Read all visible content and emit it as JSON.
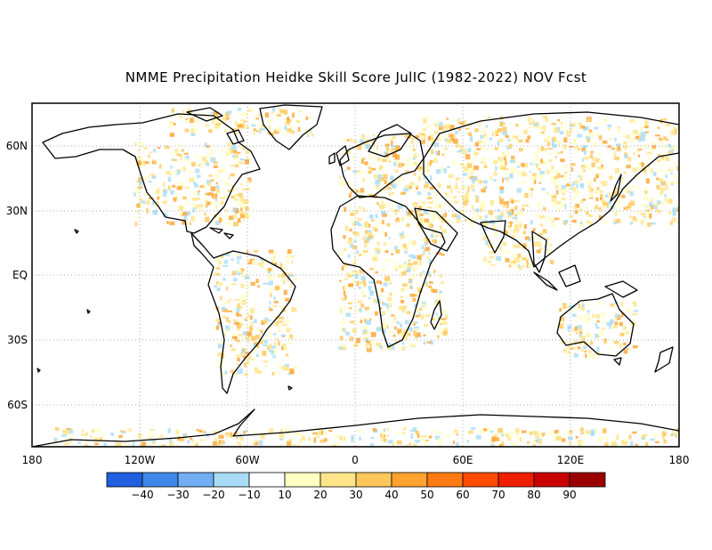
{
  "title": "NMME Precipitation Heidke Skill Score JulIC (1982-2022) NOV Fcst",
  "axes": {
    "x_ticks": [
      "180",
      "120W",
      "60W",
      "0",
      "60E",
      "120E",
      "180"
    ],
    "y_ticks": [
      "60N",
      "30N",
      "EQ",
      "30S",
      "60S"
    ]
  },
  "colorbar": {
    "labels": [
      "-40",
      "-30",
      "-20",
      "-10",
      "10",
      "20",
      "30",
      "40",
      "50",
      "60",
      "70",
      "80",
      "90"
    ],
    "colors": [
      "#1f5fe0",
      "#3f88ea",
      "#72aef3",
      "#a8dcf6",
      "#ffffff",
      "#ffffc4",
      "#ffe58a",
      "#ffc75a",
      "#ffa32e",
      "#ff7a12",
      "#ff4a00",
      "#ee1e00",
      "#c80000",
      "#9a0000"
    ]
  },
  "map": {
    "grid": "dotted",
    "coastline_color": "#000000",
    "lon_range": [
      -180,
      180
    ],
    "lat_range": [
      -78,
      80
    ]
  }
}
